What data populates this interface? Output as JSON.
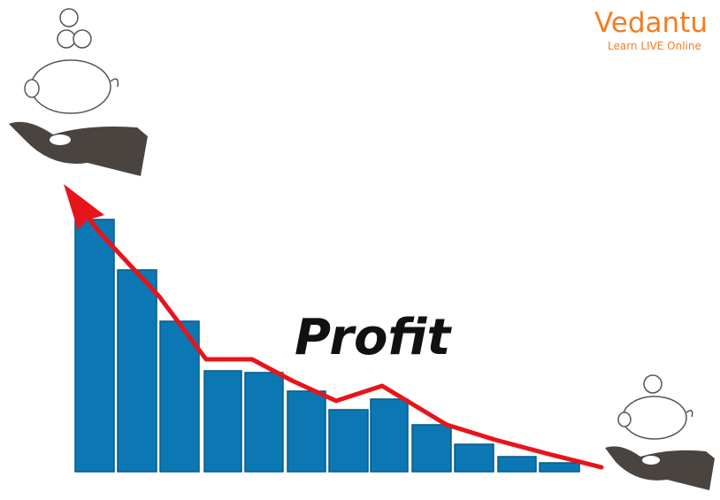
{
  "logo": {
    "name": "Vedantu",
    "tagline": "Learn LIVE Online"
  },
  "label": "Profit"
}
